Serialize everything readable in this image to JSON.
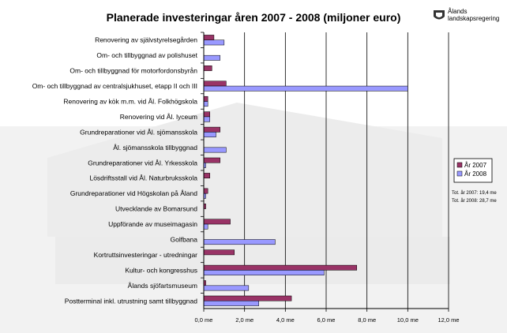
{
  "logo": {
    "line1": "Ålands",
    "line2": "landskapsregering"
  },
  "chart_data": {
    "type": "bar",
    "orientation": "horizontal",
    "title": "Planerade investeringar åren 2007 - 2008 (miljoner euro)",
    "categories": [
      "Renovering av självstyrelsegården",
      "Om- och tillbyggnad av polishuset",
      "Om- och tillbyggnad för motorfordonsbyrån",
      "Om- och tillbyggnad av centralsjukhuset, etapp II och III",
      "Renovering av kök m.m. vid Ål. Folkhögskola",
      "Renovering vid Ål. lyceum",
      "Grundreparationer vid Ål. sjömansskola",
      "Ål. sjömansskola tillbyggnad",
      "Grundreparationer vid Ål. Yrkesskola",
      "Lösdriftsstall vid Ål. Naturbruksskola",
      "Grundreparationer vid Högskolan på Åland",
      "Utvecklande av Bomarsund",
      "Uppförande av museimagasin",
      "Golfbana",
      "Kortruttsinvesteringar - utredningar",
      "Kultur- och kongresshus",
      "Ålands sjöfartsmuseum",
      "Postterminal inkl. utrustning samt tillbyggnad"
    ],
    "series": [
      {
        "name": "År 2007",
        "color": "#993366",
        "values": [
          0.5,
          0,
          0.4,
          1.1,
          0.2,
          0.3,
          0.8,
          0,
          0.8,
          0.3,
          0.2,
          0.1,
          1.3,
          0,
          1.5,
          7.5,
          0.1,
          4.3
        ]
      },
      {
        "name": "År 2008",
        "color": "#9999ff",
        "values": [
          1.0,
          0.8,
          0,
          10.0,
          0.2,
          0.3,
          0.6,
          1.1,
          0.1,
          0,
          0.1,
          0,
          0.2,
          3.5,
          0,
          5.9,
          2.2,
          2.7
        ]
      }
    ],
    "x_ticks": [
      "0,0 me",
      "2,0 me",
      "4,0 me",
      "6,0 me",
      "8,0 me",
      "10,0 me",
      "12,0 me"
    ],
    "xlim": [
      0,
      12
    ],
    "grid": true,
    "legend_position": "right",
    "annotations": [
      "Tot. år 2007: 19,4 me",
      "Tot. år 2008: 28,7 me"
    ]
  }
}
